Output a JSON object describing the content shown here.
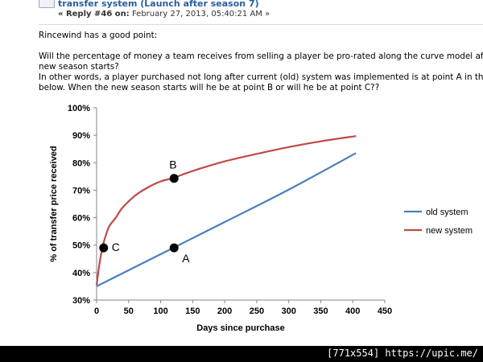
{
  "post": {
    "title": "transfer system (Launch after season 7)",
    "reply_label": "« Reply #46 on:",
    "reply_date": "February 27, 2013, 05:40:21 AM »",
    "lines": [
      "Rincewind has a good point:",
      "",
      "Will the percentage of money a team receives from selling a player be pro-rated along the curve model after the",
      "new season starts?",
      "In other words, a player purchased not long after current (old) system was implemented is at point A in the diag",
      "below. When the new season starts will he be at point B or will he be at point C??"
    ]
  },
  "watermark": "[771x554] https://upic.me/",
  "chart_data": {
    "type": "line",
    "xlabel": "Days since purchase",
    "ylabel": "% of transfer price received",
    "xlim": [
      0,
      450
    ],
    "ylim": [
      30,
      100
    ],
    "x_ticks": [
      0,
      50,
      100,
      150,
      200,
      250,
      300,
      350,
      400,
      450
    ],
    "y_ticks": [
      30,
      40,
      50,
      60,
      70,
      80,
      90,
      100
    ],
    "y_tick_labels": [
      "30%",
      "40%",
      "50%",
      "60%",
      "70%",
      "80%",
      "90%",
      "100%"
    ],
    "legend_position": "right",
    "series": [
      {
        "name": "old system",
        "color": "#4a7ebb",
        "x": [
          0,
          100,
          200,
          300,
          405
        ],
        "y": [
          35.0,
          46.7,
          58.4,
          70.2,
          83.5
        ]
      },
      {
        "name": "new system",
        "color": "#be4b48",
        "x": [
          0,
          5,
          10,
          15,
          20,
          30,
          40,
          60,
          80,
          100,
          120,
          150,
          200,
          250,
          300,
          350,
          405
        ],
        "y": [
          35.5,
          44.0,
          50.0,
          54.0,
          57.0,
          60.0,
          63.5,
          68.0,
          71.0,
          73.2,
          74.5,
          77.0,
          80.5,
          83.2,
          85.7,
          87.8,
          89.7
        ]
      }
    ],
    "annotations": [
      {
        "label": "A",
        "x": 121,
        "y": 49,
        "series": "old system"
      },
      {
        "label": "B",
        "x": 121,
        "y": 74.3,
        "series": "new system"
      },
      {
        "label": "C",
        "x": 11,
        "y": 49,
        "series": "new system"
      }
    ]
  }
}
